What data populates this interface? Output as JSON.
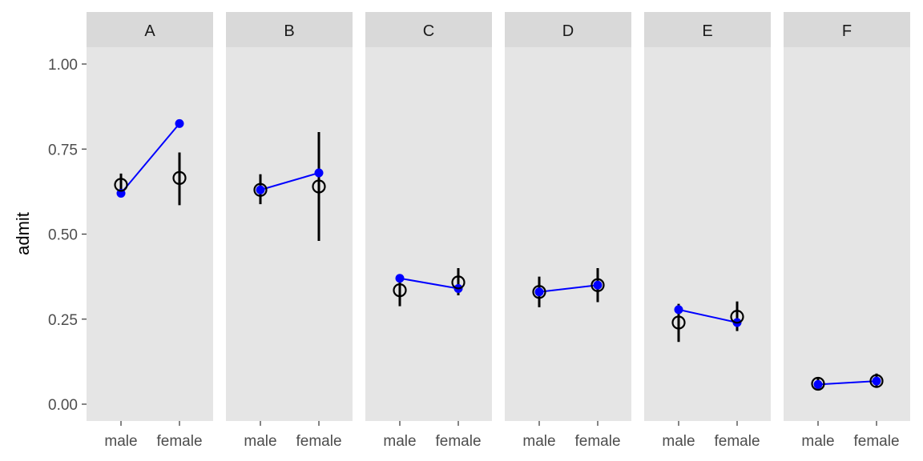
{
  "chart_data": {
    "type": "scatter",
    "ylabel": "admit",
    "ylim": [
      -0.05,
      1.1
    ],
    "yticks": [
      {
        "value": 0.0,
        "label": "0.00"
      },
      {
        "value": 0.25,
        "label": "0.25"
      },
      {
        "value": 0.5,
        "label": "0.50"
      },
      {
        "value": 0.75,
        "label": "0.75"
      },
      {
        "value": 1.0,
        "label": "1.00"
      }
    ],
    "categories": [
      "male",
      "female"
    ],
    "grid": false,
    "colors": {
      "panel_bg": "#e5e5e5",
      "strip_bg": "#d9d9d9",
      "observed": "#000000",
      "predicted": "#0000ff"
    },
    "panels": [
      {
        "label": "A",
        "observed": [
          {
            "x": "male",
            "mean": 0.645,
            "lower": 0.61,
            "upper": 0.678
          },
          {
            "x": "female",
            "mean": 0.665,
            "lower": 0.585,
            "upper": 0.74
          }
        ],
        "predicted": [
          0.62,
          0.825
        ]
      },
      {
        "label": "B",
        "observed": [
          {
            "x": "male",
            "mean": 0.63,
            "lower": 0.588,
            "upper": 0.676
          },
          {
            "x": "female",
            "mean": 0.64,
            "lower": 0.48,
            "upper": 0.8
          }
        ],
        "predicted": [
          0.63,
          0.68
        ]
      },
      {
        "label": "C",
        "observed": [
          {
            "x": "male",
            "mean": 0.335,
            "lower": 0.288,
            "upper": 0.38
          },
          {
            "x": "female",
            "mean": 0.358,
            "lower": 0.32,
            "upper": 0.4
          }
        ],
        "predicted": [
          0.37,
          0.34
        ]
      },
      {
        "label": "D",
        "observed": [
          {
            "x": "male",
            "mean": 0.33,
            "lower": 0.285,
            "upper": 0.375
          },
          {
            "x": "female",
            "mean": 0.35,
            "lower": 0.3,
            "upper": 0.4
          }
        ],
        "predicted": [
          0.33,
          0.35
        ]
      },
      {
        "label": "E",
        "observed": [
          {
            "x": "male",
            "mean": 0.24,
            "lower": 0.183,
            "upper": 0.295
          },
          {
            "x": "female",
            "mean": 0.257,
            "lower": 0.215,
            "upper": 0.302
          }
        ],
        "predicted": [
          0.278,
          0.24
        ]
      },
      {
        "label": "F",
        "observed": [
          {
            "x": "male",
            "mean": 0.06,
            "lower": 0.045,
            "upper": 0.08
          },
          {
            "x": "female",
            "mean": 0.068,
            "lower": 0.05,
            "upper": 0.09
          }
        ],
        "predicted": [
          0.058,
          0.068
        ]
      }
    ]
  }
}
